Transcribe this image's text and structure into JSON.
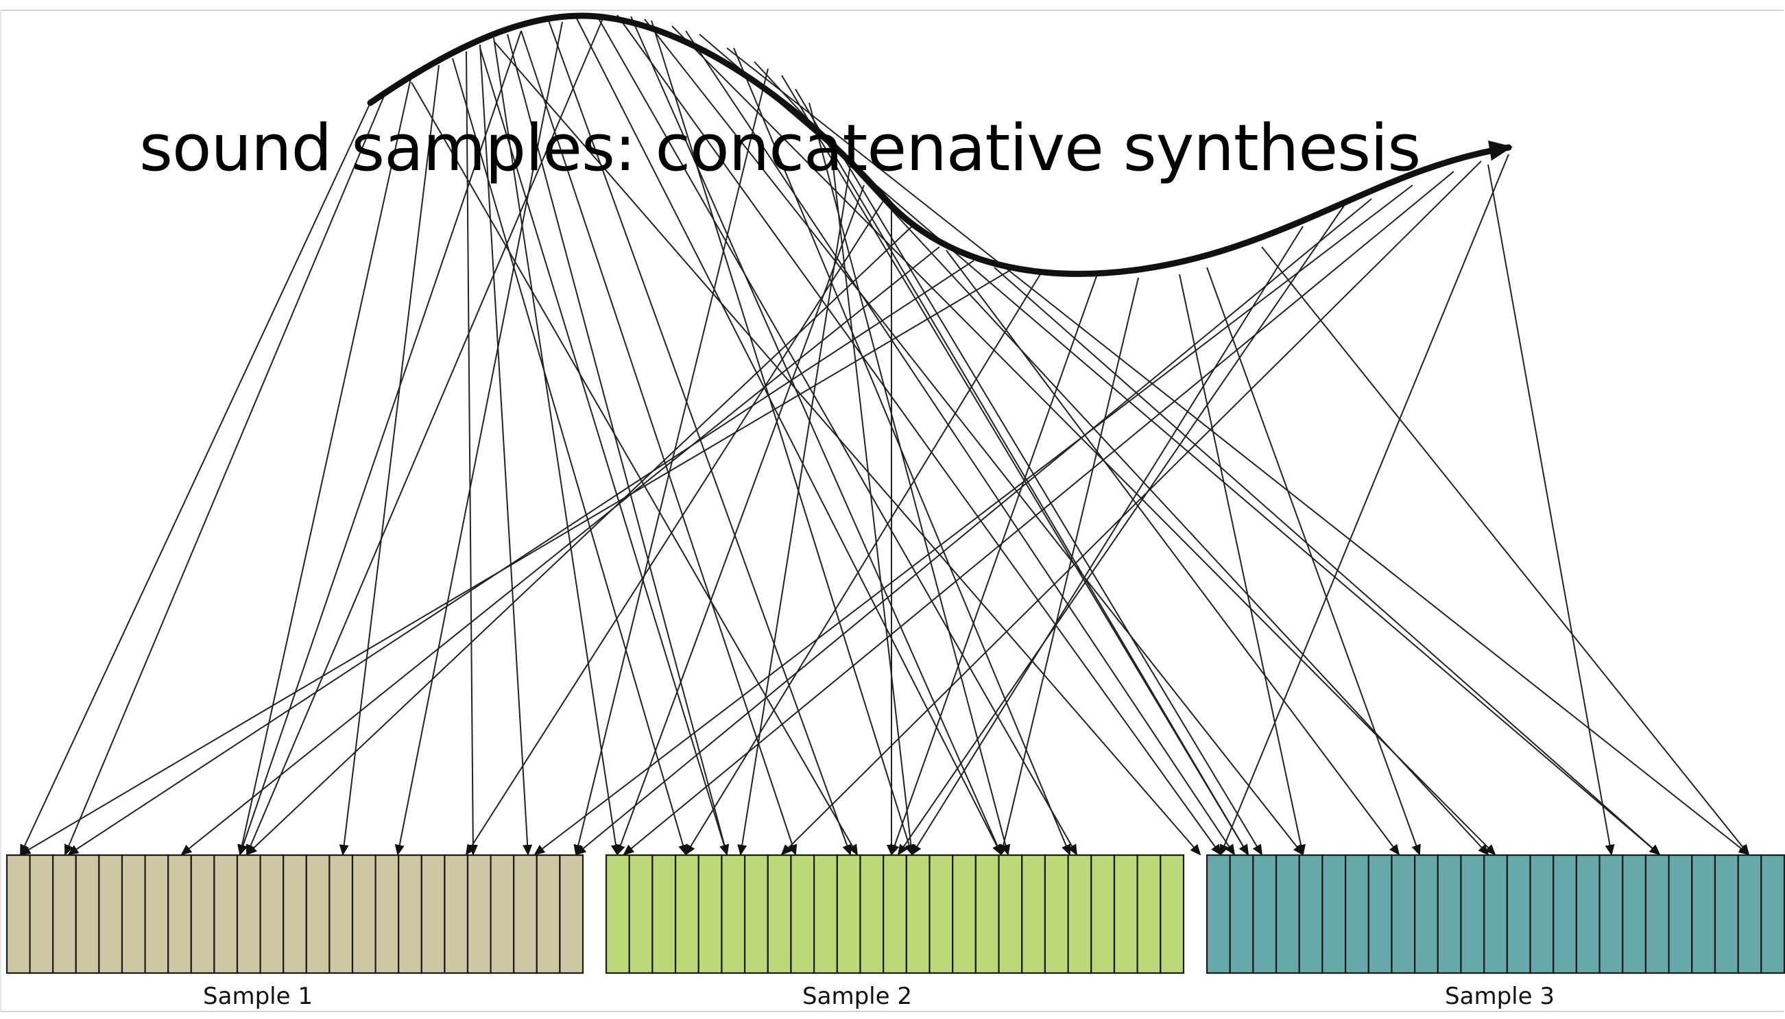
{
  "title": "sound samples: concatenative synthesis",
  "samples": [
    {
      "label": "Sample 1",
      "color": "#cdc8a3",
      "grains": 25
    },
    {
      "label": "Sample 2",
      "color": "#bdd878",
      "grains": 25
    },
    {
      "label": "Sample 3",
      "color": "#67a8a8",
      "grains": 25
    }
  ],
  "line_color": "#222222",
  "grain_border_color": "#1a1a1a"
}
